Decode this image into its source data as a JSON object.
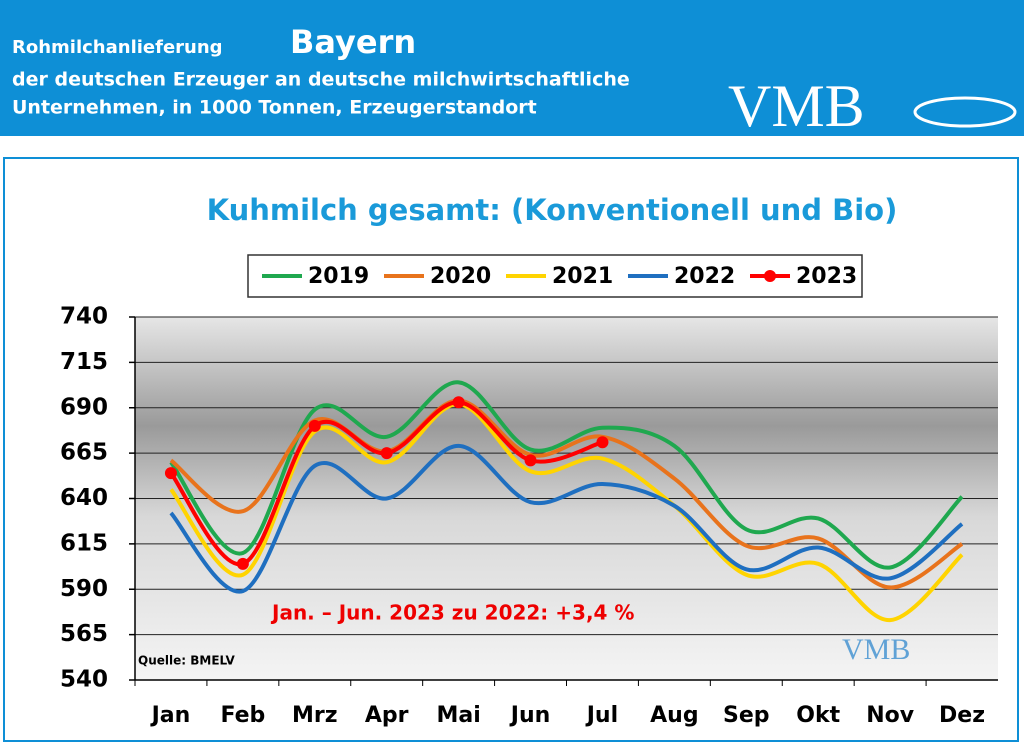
{
  "header": {
    "line1": "Rohmilchanlieferung",
    "region": "Bayern",
    "line2": "der deutschen Erzeuger an deutsche milchwirtschaftliche",
    "line3": "Unternehmen, in 1000 Tonnen, Erzeugerstandort",
    "logo": "VMB"
  },
  "chart_data": {
    "type": "line",
    "title": "Kuhmilch gesamt: (Konventionell und Bio)",
    "categories": [
      "Jan",
      "Feb",
      "Mrz",
      "Apr",
      "Mai",
      "Jun",
      "Jul",
      "Aug",
      "Sep",
      "Okt",
      "Nov",
      "Dez"
    ],
    "series": [
      {
        "name": "2019",
        "color": "#1fa84f",
        "values": [
          660,
          610,
          689,
          674,
          704,
          667,
          679,
          669,
          623,
          629,
          602,
          641
        ]
      },
      {
        "name": "2020",
        "color": "#e8731c",
        "values": [
          661,
          633,
          683,
          666,
          694,
          664,
          674,
          651,
          614,
          618,
          591,
          615
        ]
      },
      {
        "name": "2021",
        "color": "#ffd400",
        "values": [
          645,
          598,
          677,
          660,
          692,
          655,
          662,
          636,
          598,
          604,
          573,
          609
        ]
      },
      {
        "name": "2022",
        "color": "#1f6fc0",
        "values": [
          632,
          589,
          658,
          640,
          669,
          638,
          648,
          636,
          601,
          613,
          596,
          626
        ]
      },
      {
        "name": "2023",
        "color": "#ff0000",
        "markers": true,
        "values": [
          654,
          604,
          680,
          665,
          693,
          661,
          671,
          null,
          null,
          null,
          null,
          null
        ]
      }
    ],
    "ylim": [
      540,
      740
    ],
    "yticks": [
      540,
      565,
      590,
      615,
      640,
      665,
      690,
      715,
      740
    ],
    "grid": true,
    "annotation": "Jan. – Jun. 2023 zu 2022: +3,4 %",
    "source": "Quelle: BMELV",
    "watermark": "VMB"
  }
}
